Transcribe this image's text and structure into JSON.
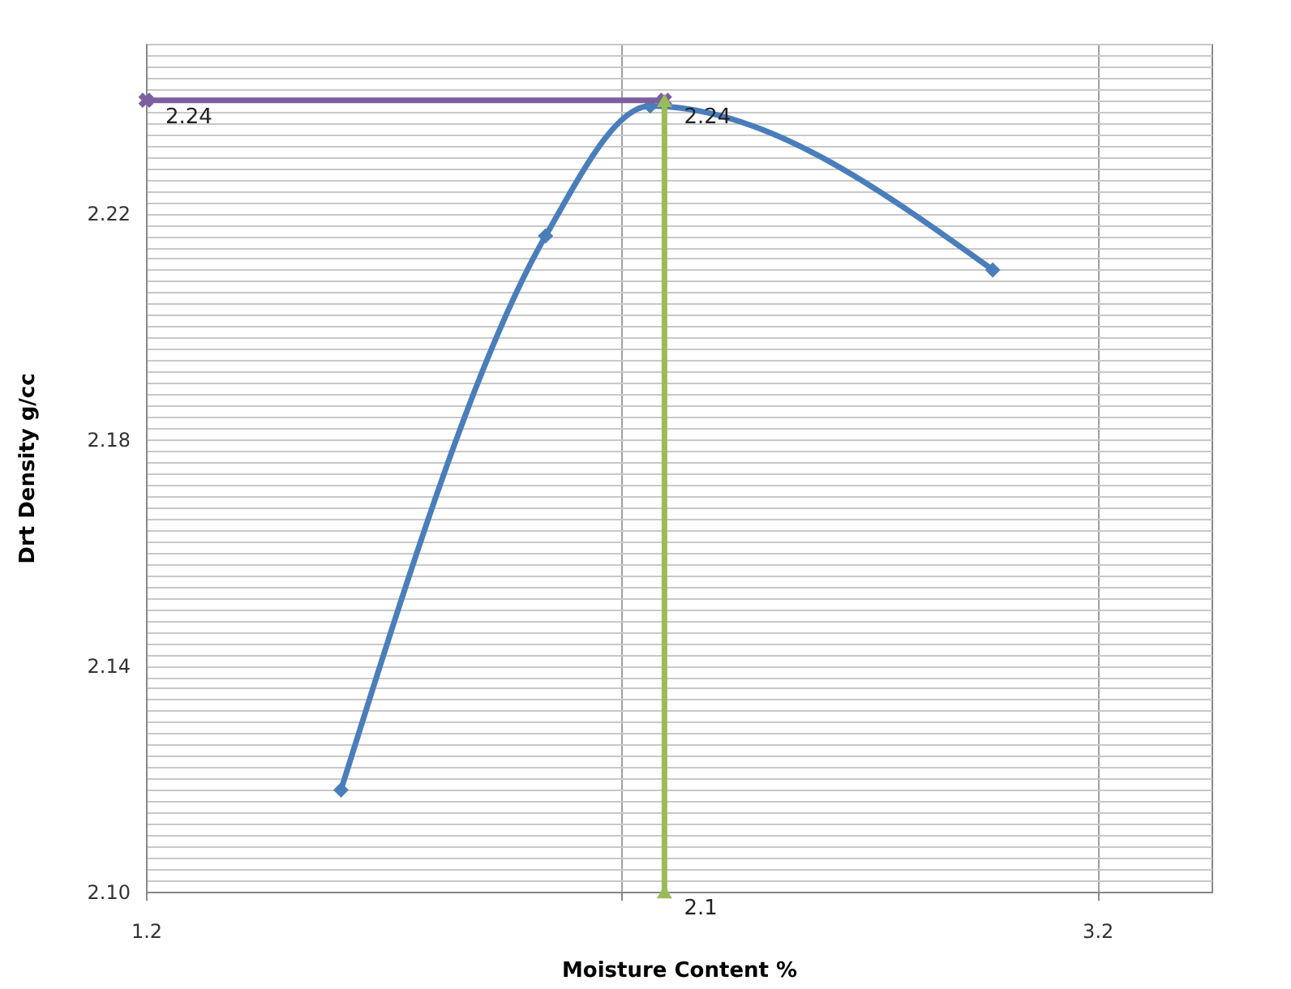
{
  "chart_data": {
    "type": "line",
    "xlabel": "Moisture Content %",
    "ylabel": "Drt Density g/cc",
    "xlim": [
      1.2,
      3.44
    ],
    "ylim": [
      2.1,
      2.25
    ],
    "xticks": [
      1.2,
      {
        "value": 2.2,
        "label": null
      },
      3.2
    ],
    "yticks": [
      {
        "value": 2.1,
        "label": "2.10"
      },
      {
        "value": 2.102,
        "label": null
      },
      {
        "value": 2.104,
        "label": null
      },
      {
        "value": 2.106,
        "label": null
      },
      {
        "value": 2.108,
        "label": null
      },
      {
        "value": 2.11,
        "label": null
      },
      {
        "value": 2.112,
        "label": null
      },
      {
        "value": 2.114,
        "label": null
      },
      {
        "value": 2.116,
        "label": null
      },
      {
        "value": 2.118,
        "label": null
      },
      {
        "value": 2.12,
        "label": null
      },
      {
        "value": 2.122,
        "label": null
      },
      {
        "value": 2.124,
        "label": null
      },
      {
        "value": 2.126,
        "label": null
      },
      {
        "value": 2.128,
        "label": null
      },
      {
        "value": 2.13,
        "label": null
      },
      {
        "value": 2.132,
        "label": null
      },
      {
        "value": 2.134,
        "label": null
      },
      {
        "value": 2.136,
        "label": null
      },
      {
        "value": 2.138,
        "label": null
      },
      2.14,
      {
        "value": 2.142,
        "label": null
      },
      {
        "value": 2.144,
        "label": null
      },
      {
        "value": 2.146,
        "label": null
      },
      {
        "value": 2.148,
        "label": null
      },
      {
        "value": 2.15,
        "label": null
      },
      {
        "value": 2.152,
        "label": null
      },
      {
        "value": 2.154,
        "label": null
      },
      {
        "value": 2.156,
        "label": null
      },
      {
        "value": 2.158,
        "label": null
      },
      {
        "value": 2.16,
        "label": null
      },
      {
        "value": 2.162,
        "label": null
      },
      {
        "value": 2.164,
        "label": null
      },
      {
        "value": 2.166,
        "label": null
      },
      {
        "value": 2.168,
        "label": null
      },
      {
        "value": 2.17,
        "label": null
      },
      {
        "value": 2.172,
        "label": null
      },
      {
        "value": 2.174,
        "label": null
      },
      {
        "value": 2.176,
        "label": null
      },
      {
        "value": 2.178,
        "label": null
      },
      2.18,
      {
        "value": 2.182,
        "label": null
      },
      {
        "value": 2.184,
        "label": null
      },
      {
        "value": 2.186,
        "label": null
      },
      {
        "value": 2.188,
        "label": null
      },
      {
        "value": 2.19,
        "label": null
      },
      {
        "value": 2.192,
        "label": null
      },
      {
        "value": 2.194,
        "label": null
      },
      {
        "value": 2.196,
        "label": null
      },
      {
        "value": 2.198,
        "label": null
      },
      {
        "value": 2.2,
        "label": null
      },
      {
        "value": 2.202,
        "label": null
      },
      {
        "value": 2.204,
        "label": null
      },
      {
        "value": 2.206,
        "label": null
      },
      {
        "value": 2.208,
        "label": null
      },
      {
        "value": 2.21,
        "label": null
      },
      {
        "value": 2.212,
        "label": null
      },
      {
        "value": 2.214,
        "label": null
      },
      {
        "value": 2.216,
        "label": null
      },
      {
        "value": 2.218,
        "label": null
      },
      2.22,
      {
        "value": 2.222,
        "label": null
      },
      {
        "value": 2.224,
        "label": null
      },
      {
        "value": 2.226,
        "label": null
      },
      {
        "value": 2.228,
        "label": null
      },
      {
        "value": 2.23,
        "label": null
      },
      {
        "value": 2.232,
        "label": null
      },
      {
        "value": 2.234,
        "label": null
      },
      {
        "value": 2.236,
        "label": null
      },
      {
        "value": 2.238,
        "label": null
      },
      {
        "value": 2.24,
        "label": null
      },
      {
        "value": 2.242,
        "label": null
      },
      {
        "value": 2.244,
        "label": null
      },
      {
        "value": 2.246,
        "label": null
      },
      {
        "value": 2.248,
        "label": null
      },
      {
        "value": 2.25,
        "label": null
      }
    ],
    "grid": true,
    "series": [
      {
        "color": "#4a7ebb",
        "marker": "diamond",
        "x": [
          1.61,
          2.04,
          2.26,
          2.98
        ],
        "values": [
          2.118,
          2.216,
          2.239,
          2.21
        ]
      },
      {
        "color": "#7d5fa0",
        "marker": "cross",
        "x": [
          1.2,
          2.29
        ],
        "values": [
          2.24,
          2.24
        ],
        "value_labels": [
          "2.24",
          "2.24"
        ]
      },
      {
        "color": "#9bbb59",
        "marker": "triangle",
        "x": [
          2.29,
          2.29
        ],
        "values": [
          2.1,
          2.24
        ],
        "value_labels": [
          "2.1",
          null
        ]
      }
    ]
  }
}
